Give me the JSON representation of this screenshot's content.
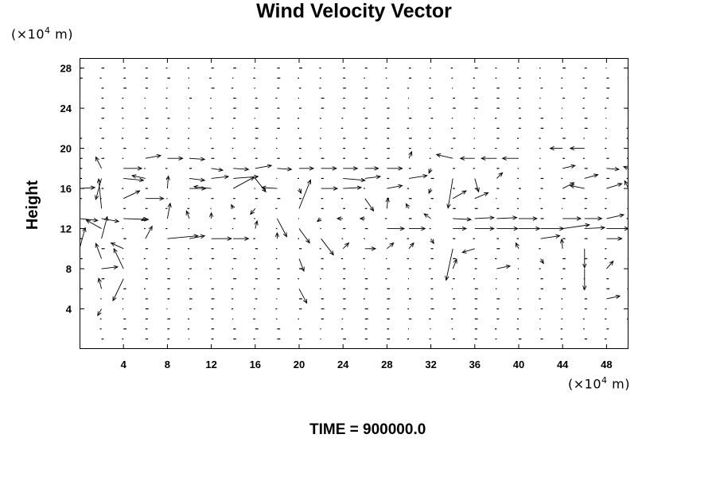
{
  "chart_data": {
    "type": "vector_field",
    "title": "Wind Velocity Vector",
    "ylabel": "Height",
    "xlabel": "",
    "unit_prefix": "(×10",
    "unit_exp": "4",
    "unit_suffix": " m)",
    "xlim": [
      0,
      50
    ],
    "ylim": [
      0,
      29
    ],
    "x_ticks": [
      4,
      8,
      12,
      16,
      20,
      24,
      28,
      32,
      36,
      40,
      44,
      48
    ],
    "y_ticks": [
      4,
      8,
      12,
      16,
      20,
      24,
      28
    ],
    "x_tick_labels": [
      "4",
      "8",
      "12",
      "16",
      "20",
      "24",
      "28",
      "32",
      "36",
      "40",
      "44",
      "48"
    ],
    "y_tick_labels": [
      "4",
      "8",
      "12",
      "16",
      "20",
      "24",
      "28"
    ],
    "grid": false,
    "legend": "none",
    "grid_spacing": {
      "x": 2,
      "y": 1
    },
    "vectors": [
      {
        "x": 0,
        "y": 16,
        "u": 1.6,
        "v": 0.1
      },
      {
        "x": 0,
        "y": 13,
        "u": 1.9,
        "v": -0.2
      },
      {
        "x": 0,
        "y": 10,
        "u": 0.6,
        "v": 2.2
      },
      {
        "x": 2,
        "y": 18,
        "u": -0.6,
        "v": 1.2
      },
      {
        "x": 2,
        "y": 17,
        "u": -0.6,
        "v": -2.2
      },
      {
        "x": 2,
        "y": 14,
        "u": -0.3,
        "v": 3.1
      },
      {
        "x": 2,
        "y": 13,
        "u": 1.8,
        "v": -0.3
      },
      {
        "x": 2,
        "y": 12,
        "u": -1.6,
        "v": 0.9
      },
      {
        "x": 2,
        "y": 11,
        "u": 0.6,
        "v": 2.3
      },
      {
        "x": 2,
        "y": 9,
        "u": -0.6,
        "v": 1.6
      },
      {
        "x": 2,
        "y": 8,
        "u": 1.7,
        "v": 0.2
      },
      {
        "x": 2,
        "y": 6,
        "u": -0.3,
        "v": 1.1
      },
      {
        "x": 2,
        "y": 4,
        "u": -0.4,
        "v": -0.7
      },
      {
        "x": 4,
        "y": 18,
        "u": 1.9,
        "v": 0.0
      },
      {
        "x": 4,
        "y": 17,
        "u": 2.1,
        "v": -0.2
      },
      {
        "x": 4,
        "y": 15,
        "u": 1.7,
        "v": 0.8
      },
      {
        "x": 4,
        "y": 13,
        "u": 2.6,
        "v": -0.1
      },
      {
        "x": 4,
        "y": 10,
        "u": -1.3,
        "v": 0.6
      },
      {
        "x": 4,
        "y": 8,
        "u": -1.0,
        "v": 2.1
      },
      {
        "x": 4,
        "y": 7,
        "u": -1.1,
        "v": -2.3
      },
      {
        "x": 6,
        "y": 19,
        "u": 1.6,
        "v": 0.3
      },
      {
        "x": 6,
        "y": 17,
        "u": -1.4,
        "v": 0.3
      },
      {
        "x": 6,
        "y": 15,
        "u": 1.9,
        "v": 0.0
      },
      {
        "x": 6,
        "y": 13,
        "u": -0.4,
        "v": -0.2
      },
      {
        "x": 6,
        "y": 11,
        "u": 0.7,
        "v": 1.3
      },
      {
        "x": 8,
        "y": 19,
        "u": 1.6,
        "v": 0.0
      },
      {
        "x": 8,
        "y": 16,
        "u": 0.1,
        "v": 1.3
      },
      {
        "x": 8,
        "y": 13,
        "u": 0.3,
        "v": 1.6
      },
      {
        "x": 8,
        "y": 11,
        "u": 3.2,
        "v": 0.3
      },
      {
        "x": 10,
        "y": 19,
        "u": 1.6,
        "v": -0.1
      },
      {
        "x": 10,
        "y": 17,
        "u": 1.6,
        "v": -0.2
      },
      {
        "x": 10,
        "y": 16,
        "u": 1.7,
        "v": 0.0
      },
      {
        "x": 10,
        "y": 13,
        "u": -0.3,
        "v": 0.8
      },
      {
        "x": 10,
        "y": 11,
        "u": 1.6,
        "v": 0.3
      },
      {
        "x": 12,
        "y": 18,
        "u": 1.2,
        "v": -0.2
      },
      {
        "x": 12,
        "y": 17,
        "u": 1.8,
        "v": 0.2
      },
      {
        "x": 12,
        "y": 16,
        "u": -1.8,
        "v": 0.2
      },
      {
        "x": 12,
        "y": 13,
        "u": 0.0,
        "v": 0.6
      },
      {
        "x": 12,
        "y": 11,
        "u": 2.1,
        "v": 0.0
      },
      {
        "x": 14,
        "y": 18,
        "u": 1.6,
        "v": -0.1
      },
      {
        "x": 14,
        "y": 17,
        "u": 2.6,
        "v": 0.2
      },
      {
        "x": 14,
        "y": 16,
        "u": 2.2,
        "v": 1.2
      },
      {
        "x": 14,
        "y": 14,
        "u": -0.2,
        "v": 0.4
      },
      {
        "x": 14,
        "y": 11,
        "u": 1.6,
        "v": 0.0
      },
      {
        "x": 16,
        "y": 18,
        "u": 1.7,
        "v": 0.3
      },
      {
        "x": 16,
        "y": 17,
        "u": 1.1,
        "v": -1.4
      },
      {
        "x": 16,
        "y": 14,
        "u": -0.5,
        "v": -0.6
      },
      {
        "x": 16,
        "y": 12,
        "u": 0.2,
        "v": 0.8
      },
      {
        "x": 18,
        "y": 18,
        "u": 1.5,
        "v": -0.1
      },
      {
        "x": 18,
        "y": 16,
        "u": -1.6,
        "v": 0.1
      },
      {
        "x": 18,
        "y": 13,
        "u": 1.0,
        "v": -1.9
      },
      {
        "x": 18,
        "y": 11,
        "u": 0.0,
        "v": 0.6
      },
      {
        "x": 20,
        "y": 18,
        "u": 1.5,
        "v": 0.0
      },
      {
        "x": 20,
        "y": 16,
        "u": 0.2,
        "v": -0.5
      },
      {
        "x": 20,
        "y": 14,
        "u": 1.2,
        "v": 3.0
      },
      {
        "x": 20,
        "y": 12,
        "u": 1.1,
        "v": -1.5
      },
      {
        "x": 20,
        "y": 9,
        "u": 0.5,
        "v": -1.3
      },
      {
        "x": 20,
        "y": 6,
        "u": 0.8,
        "v": -1.5
      },
      {
        "x": 22,
        "y": 18,
        "u": 1.6,
        "v": 0.0
      },
      {
        "x": 22,
        "y": 16,
        "u": 1.7,
        "v": 0.0
      },
      {
        "x": 22,
        "y": 13,
        "u": -0.4,
        "v": -0.3
      },
      {
        "x": 22,
        "y": 11,
        "u": 1.3,
        "v": -1.7
      },
      {
        "x": 24,
        "y": 18,
        "u": 1.5,
        "v": 0.0
      },
      {
        "x": 24,
        "y": 17,
        "u": 2.3,
        "v": -0.2
      },
      {
        "x": 24,
        "y": 16,
        "u": 1.9,
        "v": 0.1
      },
      {
        "x": 24,
        "y": 13,
        "u": -0.6,
        "v": 0.0
      },
      {
        "x": 24,
        "y": 10,
        "u": 0.6,
        "v": 0.6
      },
      {
        "x": 26,
        "y": 18,
        "u": 1.4,
        "v": 0.0
      },
      {
        "x": 26,
        "y": 17,
        "u": 1.6,
        "v": 0.2
      },
      {
        "x": 26,
        "y": 15,
        "u": 0.9,
        "v": -1.3
      },
      {
        "x": 26,
        "y": 13,
        "u": -0.5,
        "v": 0.0
      },
      {
        "x": 26,
        "y": 10,
        "u": 1.1,
        "v": 0.0
      },
      {
        "x": 28,
        "y": 18,
        "u": 1.6,
        "v": 0.0
      },
      {
        "x": 28,
        "y": 16,
        "u": 1.6,
        "v": 0.3
      },
      {
        "x": 28,
        "y": 14,
        "u": 0.1,
        "v": 1.1
      },
      {
        "x": 28,
        "y": 12,
        "u": 1.8,
        "v": 0.0
      },
      {
        "x": 28,
        "y": 10,
        "u": 0.7,
        "v": 0.6
      },
      {
        "x": 30,
        "y": 19,
        "u": 0.3,
        "v": 0.7
      },
      {
        "x": 30,
        "y": 17,
        "u": 1.9,
        "v": 0.3
      },
      {
        "x": 30,
        "y": 14,
        "u": -0.3,
        "v": 0.5
      },
      {
        "x": 30,
        "y": 12,
        "u": 1.7,
        "v": 0.0
      },
      {
        "x": 30,
        "y": 10,
        "u": 0.5,
        "v": 0.6
      },
      {
        "x": 32,
        "y": 18,
        "u": -0.2,
        "v": -0.5
      },
      {
        "x": 32,
        "y": 16,
        "u": -0.2,
        "v": -0.5
      },
      {
        "x": 32,
        "y": 13,
        "u": -0.7,
        "v": 0.5
      },
      {
        "x": 32,
        "y": 11,
        "u": 0.3,
        "v": -0.5
      },
      {
        "x": 34,
        "y": 19,
        "u": -1.7,
        "v": 0.4
      },
      {
        "x": 34,
        "y": 17,
        "u": -0.5,
        "v": -3.1
      },
      {
        "x": 34,
        "y": 15,
        "u": 1.4,
        "v": 0.8
      },
      {
        "x": 34,
        "y": 13,
        "u": 1.9,
        "v": -0.1
      },
      {
        "x": 34,
        "y": 12,
        "u": 1.4,
        "v": 0.0
      },
      {
        "x": 34,
        "y": 10,
        "u": -0.7,
        "v": -3.3
      },
      {
        "x": 34,
        "y": 8,
        "u": 0.4,
        "v": 1.0
      },
      {
        "x": 36,
        "y": 19,
        "u": -1.5,
        "v": 0.0
      },
      {
        "x": 36,
        "y": 17,
        "u": 0.4,
        "v": -1.4
      },
      {
        "x": 36,
        "y": 15,
        "u": 1.4,
        "v": 0.6
      },
      {
        "x": 36,
        "y": 13,
        "u": 2.0,
        "v": 0.1
      },
      {
        "x": 36,
        "y": 12,
        "u": 2.0,
        "v": 0.0
      },
      {
        "x": 36,
        "y": 10,
        "u": -1.3,
        "v": -0.4
      },
      {
        "x": 38,
        "y": 19,
        "u": -1.6,
        "v": 0.0
      },
      {
        "x": 38,
        "y": 17,
        "u": 0.6,
        "v": 0.6
      },
      {
        "x": 38,
        "y": 13,
        "u": 2.1,
        "v": 0.1
      },
      {
        "x": 38,
        "y": 12,
        "u": 2.2,
        "v": 0.0
      },
      {
        "x": 38,
        "y": 8,
        "u": 1.4,
        "v": 0.3
      },
      {
        "x": 40,
        "y": 19,
        "u": -1.7,
        "v": 0.0
      },
      {
        "x": 40,
        "y": 13,
        "u": 1.9,
        "v": 0.0
      },
      {
        "x": 40,
        "y": 12,
        "u": 2.2,
        "v": 0.0
      },
      {
        "x": 40,
        "y": 10,
        "u": -0.3,
        "v": 0.6
      },
      {
        "x": 42,
        "y": 12,
        "u": 2.4,
        "v": 0.0
      },
      {
        "x": 42,
        "y": 11,
        "u": 2.0,
        "v": 0.3
      },
      {
        "x": 42,
        "y": 9,
        "u": 0.3,
        "v": -0.5
      },
      {
        "x": 44,
        "y": 20,
        "u": -1.3,
        "v": 0.0
      },
      {
        "x": 44,
        "y": 18,
        "u": 1.3,
        "v": 0.3
      },
      {
        "x": 44,
        "y": 16,
        "u": 1.2,
        "v": 0.6
      },
      {
        "x": 44,
        "y": 13,
        "u": 1.9,
        "v": 0.0
      },
      {
        "x": 44,
        "y": 12,
        "u": 2.8,
        "v": 0.4
      },
      {
        "x": 44,
        "y": 10,
        "u": -0.1,
        "v": 1.0
      },
      {
        "x": 46,
        "y": 20,
        "u": -1.5,
        "v": 0.0
      },
      {
        "x": 46,
        "y": 17,
        "u": 1.4,
        "v": 0.4
      },
      {
        "x": 46,
        "y": 16,
        "u": -1.5,
        "v": 0.3
      },
      {
        "x": 46,
        "y": 13,
        "u": 1.8,
        "v": 0.0
      },
      {
        "x": 46,
        "y": 12,
        "u": 2.1,
        "v": 0.1
      },
      {
        "x": 46,
        "y": 10,
        "u": 0.0,
        "v": -2.0
      },
      {
        "x": 46,
        "y": 8,
        "u": 0.0,
        "v": -2.2
      },
      {
        "x": 48,
        "y": 18,
        "u": 1.3,
        "v": -0.1
      },
      {
        "x": 48,
        "y": 16,
        "u": 1.6,
        "v": 0.5
      },
      {
        "x": 48,
        "y": 13,
        "u": 1.8,
        "v": 0.4
      },
      {
        "x": 48,
        "y": 12,
        "u": 2.3,
        "v": 0.0
      },
      {
        "x": 48,
        "y": 11,
        "u": 1.6,
        "v": 0.0
      },
      {
        "x": 48,
        "y": 8,
        "u": 0.7,
        "v": 0.8
      },
      {
        "x": 48,
        "y": 5,
        "u": 1.4,
        "v": 0.3
      },
      {
        "x": 50,
        "y": 18,
        "u": -0.5,
        "v": 0.2
      },
      {
        "x": 50,
        "y": 16,
        "u": -0.4,
        "v": 0.8
      },
      {
        "x": 50,
        "y": 12,
        "u": 1.4,
        "v": 0.1
      }
    ]
  },
  "time_label": "TIME = 900000.0"
}
